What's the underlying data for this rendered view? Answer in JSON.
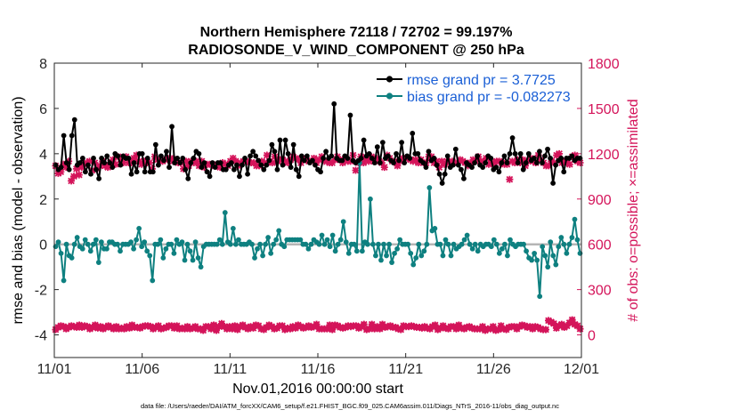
{
  "chart_data": {
    "type": "line",
    "title_line1": "Northern Hemisphere 72118 / 72702 = 99.197%",
    "title_line2": "RADIOSONDE_V_WIND_COMPONENT @ 250 hPa",
    "xlabel": "Nov.01,2016 00:00:00 start",
    "ylabel_left": "rmse and bias (model - observation)",
    "ylabel_right": "# of obs: o=possible; ×=assimilated",
    "x_ticks": [
      "11/01",
      "11/06",
      "11/11",
      "11/16",
      "11/21",
      "11/26",
      "12/01"
    ],
    "xlim": [
      0,
      30
    ],
    "ylim_left": [
      -5,
      8
    ],
    "yticks_left": [
      "-4",
      "-2",
      "0",
      "2",
      "4",
      "6",
      "8"
    ],
    "ylim_right": [
      -150,
      1800
    ],
    "yticks_right": [
      "0",
      "300",
      "600",
      "900",
      "1200",
      "1500",
      "1800"
    ],
    "legend_position": "top-right",
    "colors": {
      "rmse": "#000000",
      "bias": "#0e8080",
      "obs": "#d4145a",
      "zero_line": "#b5b5b5",
      "legend_text": "#1a5fd6"
    },
    "series": [
      {
        "name": "rmse grand pr = 3.7725",
        "key": "rmse",
        "axis": "left",
        "values": [
          3.5,
          3.3,
          3.4,
          4.8,
          3.6,
          3.3,
          4.8,
          5.5,
          3.5,
          3.6,
          3.8,
          3.2,
          3.5,
          3.1,
          3.8,
          3.3,
          2.9,
          3.8,
          3.6,
          3.9,
          3.6,
          3.4,
          4.0,
          3.9,
          3.5,
          3.9,
          3.8,
          3.8,
          3.1,
          3.6,
          3.2,
          4.0,
          4.0,
          3.2,
          3.8,
          3.2,
          3.2,
          4.4,
          3.5,
          3.9,
          3.7,
          4.1,
          3.4,
          5.2,
          3.6,
          3.8,
          3.6,
          3.8,
          3.3,
          2.9,
          3.6,
          3.8,
          4.1,
          4.0,
          3.4,
          3.6,
          3.2,
          3.0,
          3.6,
          3.4,
          3.6,
          3.6,
          3.3,
          3.3,
          3.5,
          3.6,
          3.3,
          3.5,
          3.0,
          3.5,
          3.8,
          3.1,
          3.9,
          4.1,
          3.9,
          3.7,
          3.5,
          3.3,
          3.5,
          3.7,
          4.4,
          4.1,
          3.3,
          4.6,
          3.5,
          4.6,
          4.0,
          3.4,
          4.4,
          3.3,
          3.0,
          3.9,
          3.7,
          3.9,
          3.6,
          3.7,
          3.5,
          3.3,
          3.2,
          3.8,
          4.1,
          3.8,
          3.9,
          6.2,
          3.8,
          3.7,
          3.7,
          3.9,
          3.8,
          5.7,
          3.7,
          3.6,
          3.7,
          3.8,
          4.6,
          3.9,
          4.0,
          3.8,
          3.6,
          4.3,
          3.6,
          4.5,
          3.8,
          3.9,
          3.7,
          3.6,
          4.0,
          3.7,
          4.5,
          3.6,
          3.9,
          3.8,
          4.9,
          4.0,
          4.0,
          3.7,
          3.6,
          3.4,
          4.1,
          3.7,
          3.8,
          3.5,
          3.1,
          2.7,
          3.1,
          3.9,
          3.4,
          3.5,
          4.2,
          3.5,
          3.3,
          2.9,
          3.6,
          3.5,
          3.4,
          3.6,
          3.9,
          3.5,
          3.4,
          3.6,
          3.9,
          3.8,
          3.3,
          3.4,
          3.2,
          3.6,
          3.9,
          3.6,
          4.0,
          4.7,
          4.0,
          3.6,
          4.0,
          3.3,
          3.6,
          4.0,
          3.7,
          3.8,
          3.6,
          4.1,
          3.6,
          3.9,
          4.2,
          3.8,
          2.7,
          3.5,
          3.7,
          3.8,
          3.2,
          3.8,
          3.8,
          3.9,
          3.7,
          3.8,
          3.8
        ]
      },
      {
        "name": "bias grand pr = -0.082273",
        "key": "bias",
        "axis": "left",
        "values": [
          -0.1,
          0.1,
          -0.4,
          -1.6,
          0.0,
          -0.5,
          -0.6,
          0.0,
          0.3,
          -0.1,
          -0.2,
          0.2,
          0.0,
          -0.3,
          0.0,
          0.2,
          -0.8,
          0.1,
          -0.2,
          -0.2,
          0.1,
          0.1,
          0.0,
          0.0,
          -0.3,
          0.0,
          0.0,
          0.0,
          0.1,
          -0.2,
          0.2,
          0.7,
          -0.1,
          0.1,
          -0.3,
          -0.5,
          -1.6,
          0.0,
          0.0,
          0.2,
          -0.6,
          -0.2,
          0.0,
          0.0,
          -0.4,
          0.2,
          0.0,
          0.1,
          -0.7,
          0.0,
          -0.3,
          -0.7,
          0.1,
          -0.6,
          -1.0,
          -0.1,
          0.0,
          0.0,
          0.0,
          0.0,
          0.0,
          0.2,
          0.0,
          1.4,
          0.1,
          0.0,
          0.7,
          0.0,
          0.2,
          0.0,
          0.0,
          0.0,
          0.1,
          0.0,
          -0.6,
          -0.2,
          0.0,
          -0.5,
          0.0,
          0.3,
          -0.4,
          0.0,
          0.2,
          0.6,
          0.0,
          -0.1,
          0.2,
          0.2,
          0.2,
          0.2,
          0.2,
          0.2,
          0.0,
          0.0,
          -0.2,
          0.0,
          0.2,
          0.1,
          0.0,
          0.4,
          0.0,
          0.2,
          -0.1,
          0.4,
          -0.3,
          0.0,
          0.2,
          1.0,
          0.1,
          -0.4,
          0.0,
          0.0,
          -0.3,
          3.6,
          -0.3,
          0.1,
          0.0,
          2.0,
          0.0,
          -0.5,
          0.0,
          -0.7,
          0.0,
          -0.5,
          0.0,
          -0.8,
          -0.4,
          -0.2,
          0.2,
          0.0,
          0.0,
          0.0,
          -0.4,
          -0.9,
          -0.6,
          0.0,
          -0.5,
          -0.3,
          0.0,
          2.5,
          0.6,
          0.7,
          0.0,
          0.0,
          -0.5,
          0.2,
          0.0,
          -0.5,
          0.0,
          -0.2,
          -0.1,
          0.0,
          0.2,
          0.4,
          0.0,
          -0.2,
          0.0,
          -0.3,
          0.0,
          -0.1,
          0.0,
          0.0,
          -0.1,
          0.2,
          0.0,
          -0.4,
          -0.2,
          0.0,
          -0.5,
          0.2,
          0.0,
          -0.1,
          0.0,
          0.0,
          0.0,
          -0.3,
          -0.6,
          -0.7,
          -0.4,
          -0.7,
          -2.3,
          -0.1,
          -0.5,
          -1.0,
          0.1,
          -0.5,
          -0.9,
          -0.1,
          0.3,
          0.0,
          -0.4,
          0.0,
          0.3,
          1.1,
          0.2,
          -0.4
        ]
      },
      {
        "name": "obs possible",
        "key": "obs_possible",
        "axis": "right",
        "marker": "circle",
        "values": [
          35,
          50,
          60,
          55,
          40,
          50,
          60,
          55,
          50,
          65,
          50,
          60,
          55,
          40,
          50,
          65,
          45,
          55,
          40,
          50,
          60,
          50,
          40,
          55,
          40,
          45,
          40,
          55,
          45,
          65,
          50,
          50,
          45,
          55,
          60,
          60,
          55,
          40,
          50,
          60,
          40,
          45,
          50,
          60,
          60,
          45,
          60,
          40,
          45,
          40,
          55,
          40,
          45,
          55,
          40,
          40,
          30,
          55,
          55,
          40,
          65,
          30,
          55,
          75,
          55,
          40,
          55,
          40,
          60,
          35,
          55,
          65,
          50,
          40,
          55,
          45,
          65,
          60,
          40,
          35,
          50,
          65,
          55,
          40,
          45,
          60,
          60,
          35,
          45,
          40,
          55,
          45,
          65,
          55,
          45,
          50,
          60,
          50,
          55,
          70,
          40,
          40,
          40,
          40,
          65,
          35,
          65,
          60,
          50,
          45,
          50,
          60,
          55,
          60,
          60,
          45,
          55,
          70,
          35,
          40,
          70,
          40,
          55,
          40,
          70,
          50,
          55,
          60,
          50,
          50,
          40,
          35,
          60,
          55,
          55,
          60,
          55,
          50,
          50,
          45,
          55,
          45,
          40,
          55,
          65,
          35,
          45,
          60,
          45,
          40,
          55,
          55,
          40,
          65,
          45,
          40,
          50,
          55,
          45,
          40,
          40,
          40,
          55,
          30,
          40,
          40,
          55,
          30,
          35,
          60,
          40,
          35,
          50,
          55,
          55,
          40,
          55,
          65,
          60,
          50,
          55,
          40,
          55,
          50,
          40,
          35,
          35,
          95,
          85,
          75,
          45,
          60,
          70,
          50,
          60,
          80,
          100,
          70,
          60,
          40
        ]
      },
      {
        "name": "obs assimilated",
        "key": "obs_assimilated",
        "axis": "right",
        "marker": "x",
        "values": [
          1120,
          1070,
          1080,
          1130,
          1110,
          1150,
          1020,
          1050,
          1100,
          1060,
          1110,
          1130,
          1140,
          1150,
          1090,
          1140,
          1100,
          1120,
          1150,
          1120,
          1110,
          1140,
          1160,
          1130,
          1180,
          1160,
          1140,
          1180,
          1140,
          1140,
          1170,
          1190,
          1150,
          1130,
          1150,
          1140,
          1140,
          1100,
          1180,
          1160,
          1150,
          1150,
          1160,
          1170,
          1170,
          1150,
          1160,
          1140,
          1140,
          1100,
          1150,
          1120,
          1150,
          1140,
          1150,
          1120,
          1150,
          1110,
          1130,
          1130,
          1130,
          1120,
          1120,
          1110,
          1140,
          1130,
          1120,
          1150,
          1170,
          1150,
          1120,
          1140,
          1150,
          1150,
          1140,
          1140,
          1140,
          1120,
          1120,
          1150,
          1140,
          1190,
          1150,
          1140,
          1180,
          1150,
          1160,
          1160,
          1150,
          1140,
          1160,
          1180,
          1170,
          1160,
          1140,
          1160,
          1170,
          1150,
          1150,
          1170,
          1140,
          1160,
          1180,
          1150,
          1150,
          1140,
          1140,
          1160,
          1180,
          1160,
          1140,
          1170,
          1150,
          1150,
          1190,
          1090,
          1140,
          1180,
          1140,
          1170,
          1150,
          1180,
          1150,
          1170,
          1150,
          1140,
          1110,
          1190,
          1170,
          1150,
          1150,
          1120,
          1150,
          1170,
          1170,
          1170,
          1160,
          1150,
          1160,
          1140,
          1160,
          1140,
          1140,
          1180,
          1180,
          1140,
          1150,
          1110,
          1150,
          1130,
          1150,
          1140,
          1150,
          1140,
          1140,
          1160,
          1150,
          1140,
          1120,
          1140,
          1160,
          1150,
          1180,
          1150,
          1150,
          1170,
          1130,
          1140,
          1140,
          1150,
          1150,
          1140,
          1130,
          1130,
          1030,
          1150,
          1140,
          1160,
          1140,
          1160,
          1120,
          1150,
          1170,
          1150,
          1140,
          1190,
          1160,
          1140,
          1120,
          1120,
          1150,
          1140,
          1190,
          1200,
          1140,
          1150,
          1140,
          1130,
          1180,
          1190,
          1150,
          1140
        ]
      }
    ]
  },
  "footnote": "data file: /Users/raeder/DAI/ATM_forcXX/CAM6_setup/f.e21.FHIST_BGC.f09_025.CAM6assim.011/Diags_NTrS_2016-11/obs_diag_output.nc"
}
